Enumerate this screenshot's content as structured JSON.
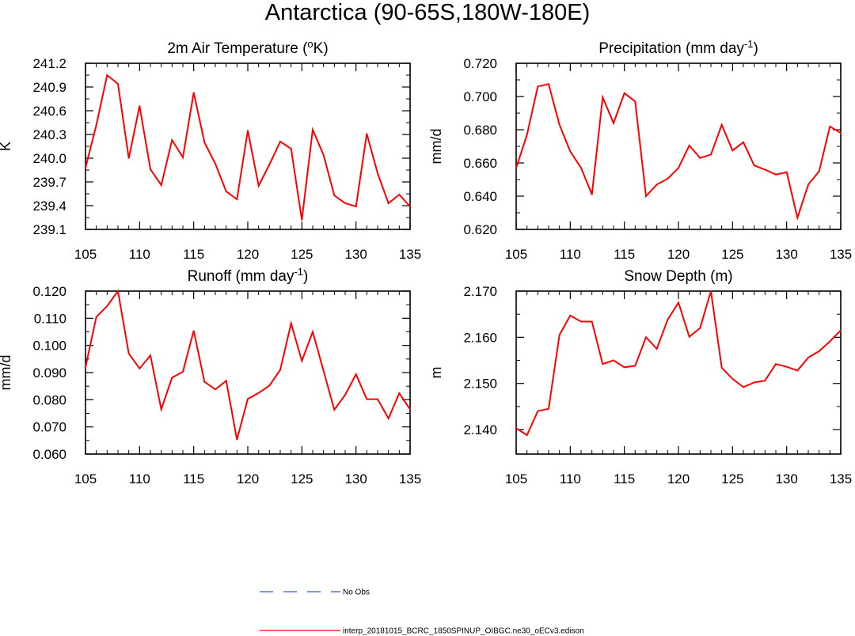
{
  "figure": {
    "title": "Antarctica (90-65S,180W-180E)"
  },
  "legend": [
    {
      "label": "No Obs",
      "color": "#3050ff",
      "dash": "dashed"
    },
    {
      "label": "interp_20181015_BCRC_1850SPINUP_OIBGC.ne30_oECv3.edison",
      "color": "#ff0000",
      "dash": "solid"
    }
  ],
  "chart_data": [
    {
      "type": "line",
      "title": "2m Air Temperature (°K)",
      "title_parts": {
        "pre": "2m Air Temperature (",
        "sup": "o",
        "post": "K)"
      },
      "xlabel": "",
      "ylabel": "K",
      "xlim": [
        105,
        135
      ],
      "ylim": [
        239.1,
        241.2
      ],
      "xticks": [
        "105",
        "110",
        "115",
        "120",
        "125",
        "130",
        "135"
      ],
      "yticks": [
        "239.1",
        "239.4",
        "239.7",
        "240.0",
        "240.3",
        "240.6",
        "240.9",
        "241.2"
      ],
      "series": [
        {
          "color": "#ff0000",
          "x": [
            105,
            106,
            107,
            108,
            109,
            110,
            111,
            112,
            113,
            114,
            115,
            116,
            117,
            118,
            119,
            120,
            121,
            122,
            123,
            124,
            125,
            126,
            127,
            128,
            129,
            130,
            131,
            132,
            133,
            134,
            135
          ],
          "y": [
            239.88,
            240.42,
            241.05,
            240.94,
            240.0,
            240.66,
            239.86,
            239.66,
            240.23,
            240.01,
            240.83,
            240.2,
            239.93,
            239.58,
            239.48,
            240.35,
            239.65,
            239.92,
            240.21,
            240.12,
            239.22,
            240.36,
            240.04,
            239.53,
            239.43,
            239.39,
            240.31,
            239.81,
            239.43,
            239.54,
            239.39
          ]
        }
      ]
    },
    {
      "type": "line",
      "title": "Precipitation (mm day-1)",
      "title_parts": {
        "pre": "Precipitation (mm day",
        "sup": "-1",
        "post": ")"
      },
      "xlabel": "",
      "ylabel": "mm/d",
      "xlim": [
        105,
        135
      ],
      "ylim": [
        0.62,
        0.72
      ],
      "xticks": [
        "105",
        "110",
        "115",
        "120",
        "125",
        "130",
        "135"
      ],
      "yticks": [
        "0.620",
        "0.640",
        "0.660",
        "0.680",
        "0.700",
        "0.720"
      ],
      "series": [
        {
          "color": "#ff0000",
          "x": [
            105,
            106,
            107,
            108,
            109,
            110,
            111,
            112,
            113,
            114,
            115,
            116,
            117,
            118,
            119,
            120,
            121,
            122,
            123,
            124,
            125,
            126,
            127,
            128,
            129,
            130,
            131,
            132,
            133,
            134,
            135
          ],
          "y": [
            0.657,
            0.677,
            0.706,
            0.7075,
            0.683,
            0.667,
            0.657,
            0.641,
            0.6995,
            0.684,
            0.702,
            0.697,
            0.64,
            0.647,
            0.6505,
            0.657,
            0.6705,
            0.663,
            0.665,
            0.683,
            0.6675,
            0.6725,
            0.6585,
            0.656,
            0.653,
            0.6545,
            0.627,
            0.647,
            0.655,
            0.682,
            0.678
          ]
        }
      ]
    },
    {
      "type": "line",
      "title": "Runoff (mm day-1)",
      "title_parts": {
        "pre": "Runoff (mm day",
        "sup": "-1",
        "post": ")"
      },
      "xlabel": "",
      "ylabel": "mm/d",
      "xlim": [
        105,
        135
      ],
      "ylim": [
        0.06,
        0.12
      ],
      "xticks": [
        "105",
        "110",
        "115",
        "120",
        "125",
        "130",
        "135"
      ],
      "yticks": [
        "0.060",
        "0.070",
        "0.080",
        "0.090",
        "0.100",
        "0.110",
        "0.120"
      ],
      "series": [
        {
          "color": "#ff0000",
          "x": [
            105,
            106,
            107,
            108,
            109,
            110,
            111,
            112,
            113,
            114,
            115,
            116,
            117,
            118,
            119,
            120,
            121,
            122,
            123,
            124,
            125,
            126,
            127,
            128,
            129,
            130,
            131,
            132,
            133,
            134,
            135
          ],
          "y": [
            0.092,
            0.1105,
            0.1145,
            0.12,
            0.097,
            0.0915,
            0.0963,
            0.0765,
            0.0881,
            0.0903,
            0.1054,
            0.0866,
            0.0838,
            0.087,
            0.0653,
            0.0803,
            0.0825,
            0.0852,
            0.091,
            0.1081,
            0.0943,
            0.105,
            0.0906,
            0.0763,
            0.0818,
            0.0894,
            0.0802,
            0.0802,
            0.0731,
            0.0824,
            0.0765
          ]
        }
      ]
    },
    {
      "type": "line",
      "title": "Snow Depth (m)",
      "title_parts": {
        "pre": "Snow Depth (m)",
        "sup": "",
        "post": ""
      },
      "xlabel": "",
      "ylabel": "m",
      "xlim": [
        105,
        135
      ],
      "ylim": [
        2.1347,
        2.17
      ],
      "xticks": [
        "105",
        "110",
        "115",
        "120",
        "125",
        "130",
        "135"
      ],
      "yticks": [
        "2.140",
        "2.150",
        "2.160",
        "2.170"
      ],
      "series": [
        {
          "color": "#ff0000",
          "x": [
            105,
            106,
            107,
            108,
            109,
            110,
            111,
            112,
            113,
            114,
            115,
            116,
            117,
            118,
            119,
            120,
            121,
            122,
            123,
            124,
            125,
            126,
            127,
            128,
            129,
            130,
            131,
            132,
            133,
            134,
            135
          ],
          "y": [
            2.1403,
            2.1388,
            2.144,
            2.1445,
            2.1605,
            2.1647,
            2.1634,
            2.1634,
            2.1542,
            2.155,
            2.1535,
            2.1538,
            2.16,
            2.1575,
            2.1638,
            2.1675,
            2.1601,
            2.162,
            2.17,
            2.1534,
            2.151,
            2.1492,
            2.1502,
            2.1506,
            2.1542,
            2.1536,
            2.1528,
            2.1556,
            2.157,
            2.1591,
            2.1615
          ]
        }
      ]
    }
  ]
}
